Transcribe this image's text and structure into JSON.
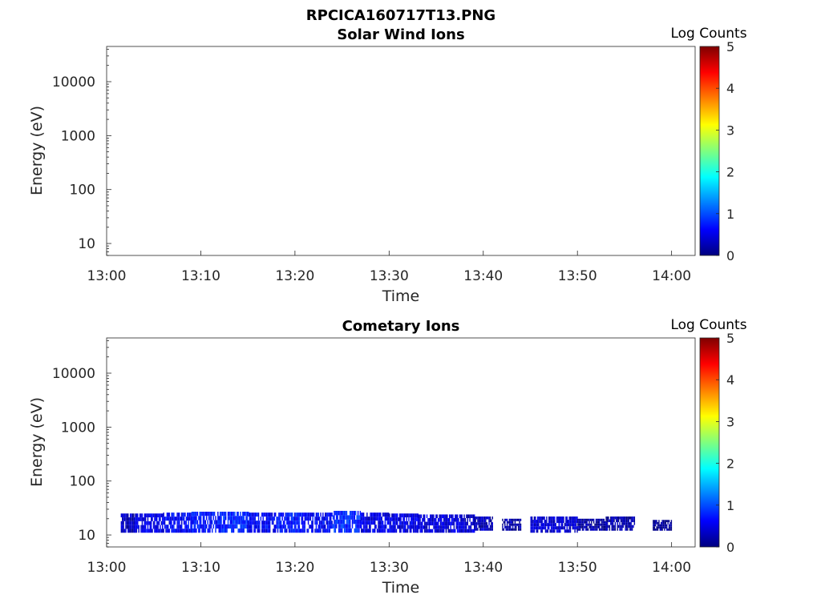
{
  "figure": {
    "title": "RPCICA160717T13.PNG"
  },
  "colors": {
    "colormap": [
      "#00007f",
      "#0000ff",
      "#007fff",
      "#00ffff",
      "#7fff7f",
      "#ffff00",
      "#ff7f00",
      "#ff0000",
      "#7f0000"
    ],
    "axis": "#262626",
    "background": "#ffffff"
  },
  "chart_data": [
    {
      "type": "heatmap",
      "title": "Solar Wind Ions",
      "xlabel": "Time",
      "ylabel": "Energy (eV)",
      "x_ticks": [
        "13:00",
        "13:10",
        "13:20",
        "13:30",
        "13:40",
        "13:50",
        "14:00"
      ],
      "xlim_minutes": [
        0,
        62.5
      ],
      "y_scale": "log",
      "y_ticks": [
        "10",
        "100",
        "1000",
        "10000"
      ],
      "ylim": [
        6,
        45000
      ],
      "colorbar": {
        "label": "Log Counts",
        "range": [
          0,
          5
        ],
        "ticks": [
          "0",
          "1",
          "2",
          "3",
          "4",
          "5"
        ]
      },
      "cells": []
    },
    {
      "type": "heatmap",
      "title": "Cometary Ions",
      "xlabel": "Time",
      "ylabel": "Energy (eV)",
      "x_ticks": [
        "13:00",
        "13:10",
        "13:20",
        "13:30",
        "13:40",
        "13:50",
        "14:00"
      ],
      "xlim_minutes": [
        0,
        62.5
      ],
      "y_scale": "log",
      "y_ticks": [
        "10",
        "100",
        "1000",
        "10000"
      ],
      "ylim": [
        6,
        45000
      ],
      "colorbar": {
        "label": "Log Counts",
        "range": [
          0,
          5
        ],
        "ticks": [
          "0",
          "1",
          "2",
          "3",
          "4",
          "5"
        ]
      },
      "cells": [
        {
          "t_start": 1.5,
          "t_end": 3,
          "e_min": 11,
          "e_max": 25,
          "log_counts": 0.3
        },
        {
          "t_start": 3,
          "t_end": 6,
          "e_min": 11,
          "e_max": 25,
          "log_counts": 0.5
        },
        {
          "t_start": 6,
          "t_end": 9,
          "e_min": 11,
          "e_max": 26,
          "log_counts": 0.6
        },
        {
          "t_start": 9,
          "t_end": 12,
          "e_min": 11,
          "e_max": 27,
          "log_counts": 0.7
        },
        {
          "t_start": 12,
          "t_end": 15,
          "e_min": 11,
          "e_max": 27,
          "log_counts": 0.8
        },
        {
          "t_start": 15,
          "t_end": 18,
          "e_min": 11,
          "e_max": 26,
          "log_counts": 0.6
        },
        {
          "t_start": 18,
          "t_end": 21,
          "e_min": 11,
          "e_max": 26,
          "log_counts": 0.7
        },
        {
          "t_start": 21,
          "t_end": 24,
          "e_min": 11,
          "e_max": 26,
          "log_counts": 0.6
        },
        {
          "t_start": 24,
          "t_end": 27,
          "e_min": 11,
          "e_max": 28,
          "log_counts": 0.8
        },
        {
          "t_start": 27,
          "t_end": 30,
          "e_min": 11,
          "e_max": 26,
          "log_counts": 0.5
        },
        {
          "t_start": 30,
          "t_end": 33,
          "e_min": 11,
          "e_max": 25,
          "log_counts": 0.5
        },
        {
          "t_start": 33,
          "t_end": 36,
          "e_min": 11,
          "e_max": 24,
          "log_counts": 0.4
        },
        {
          "t_start": 36,
          "t_end": 39,
          "e_min": 11,
          "e_max": 24,
          "log_counts": 0.4
        },
        {
          "t_start": 39,
          "t_end": 41,
          "e_min": 12,
          "e_max": 22,
          "log_counts": 0.3
        },
        {
          "t_start": 42,
          "t_end": 44,
          "e_min": 12,
          "e_max": 20,
          "log_counts": 0.2
        },
        {
          "t_start": 45,
          "t_end": 48,
          "e_min": 11,
          "e_max": 22,
          "log_counts": 0.4
        },
        {
          "t_start": 48,
          "t_end": 50,
          "e_min": 11,
          "e_max": 22,
          "log_counts": 0.4
        },
        {
          "t_start": 50,
          "t_end": 53,
          "e_min": 12,
          "e_max": 20,
          "log_counts": 0.2
        },
        {
          "t_start": 53,
          "t_end": 56,
          "e_min": 12,
          "e_max": 22,
          "log_counts": 0.2
        },
        {
          "t_start": 58,
          "t_end": 60,
          "e_min": 12,
          "e_max": 19,
          "log_counts": 0.1
        }
      ]
    }
  ]
}
